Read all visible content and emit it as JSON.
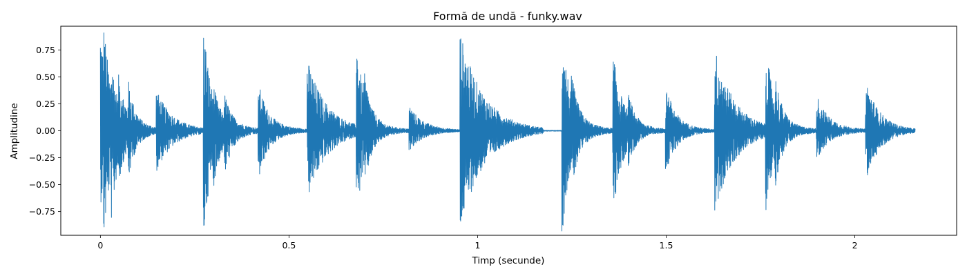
{
  "chart_data": {
    "type": "line",
    "title": "Formă de undă - funky.wav",
    "xlabel": "Timp (secunde)",
    "ylabel": "Amplitudine",
    "xlim": [
      -0.105,
      2.27
    ],
    "ylim": [
      -0.97,
      0.97
    ],
    "x_ticks": [
      0,
      0.5,
      1,
      1.5,
      2
    ],
    "x_tick_labels": [
      "0",
      "0.5",
      "1",
      "1.5",
      "2"
    ],
    "y_ticks": [
      0.75,
      0.5,
      0.25,
      0.0,
      -0.25,
      -0.5,
      -0.75
    ],
    "y_tick_labels": [
      "0.75",
      "0.50",
      "0.25",
      "0.00",
      "−0.25",
      "−0.50",
      "−0.75"
    ],
    "grid": false,
    "color": "#1f77b4",
    "duration_s": 2.16,
    "onsets": [
      {
        "t": 0.0,
        "peak": 0.85,
        "neg": 0.58,
        "decay": 0.025,
        "sustain": 0.12
      },
      {
        "t": 0.01,
        "peak": 0.88,
        "neg": 0.88,
        "decay": 0.02,
        "sustain": 0.1
      },
      {
        "t": 0.03,
        "peak": 0.6,
        "neg": 0.75,
        "decay": 0.018,
        "sustain": 0.08
      },
      {
        "t": 0.05,
        "peak": 0.45,
        "neg": 0.4,
        "decay": 0.02,
        "sustain": 0.07
      },
      {
        "t": 0.075,
        "peak": 0.4,
        "neg": 0.4,
        "decay": 0.018,
        "sustain": 0.06
      },
      {
        "t": 0.15,
        "peak": 0.32,
        "neg": 0.32,
        "decay": 0.04,
        "sustain": 0.05
      },
      {
        "t": 0.275,
        "peak": 0.87,
        "neg": 0.87,
        "decay": 0.02,
        "sustain": 0.1
      },
      {
        "t": 0.3,
        "peak": 0.35,
        "neg": 0.45,
        "decay": 0.02,
        "sustain": 0.08
      },
      {
        "t": 0.33,
        "peak": 0.28,
        "neg": 0.36,
        "decay": 0.02,
        "sustain": 0.06
      },
      {
        "t": 0.42,
        "peak": 0.38,
        "neg": 0.4,
        "decay": 0.025,
        "sustain": 0.06
      },
      {
        "t": 0.55,
        "peak": 0.6,
        "neg": 0.58,
        "decay": 0.05,
        "sustain": 0.05
      },
      {
        "t": 0.68,
        "peak": 0.75,
        "neg": 0.72,
        "decay": 0.02,
        "sustain": 0.08
      },
      {
        "t": 0.7,
        "peak": 0.48,
        "neg": 0.48,
        "decay": 0.02,
        "sustain": 0.06
      },
      {
        "t": 0.82,
        "peak": 0.2,
        "neg": 0.15,
        "decay": 0.035,
        "sustain": 0.03
      },
      {
        "t": 0.955,
        "peak": 0.82,
        "neg": 0.82,
        "decay": 0.06,
        "sustain": 0.08
      },
      {
        "t": 1.225,
        "peak": 0.85,
        "neg": 0.85,
        "decay": 0.02,
        "sustain": 0.1
      },
      {
        "t": 1.25,
        "peak": 0.45,
        "neg": 0.5,
        "decay": 0.02,
        "sustain": 0.07
      },
      {
        "t": 1.36,
        "peak": 0.65,
        "neg": 0.7,
        "decay": 0.025,
        "sustain": 0.06
      },
      {
        "t": 1.4,
        "peak": 0.3,
        "neg": 0.28,
        "decay": 0.02,
        "sustain": 0.05
      },
      {
        "t": 1.5,
        "peak": 0.38,
        "neg": 0.36,
        "decay": 0.025,
        "sustain": 0.05
      },
      {
        "t": 1.63,
        "peak": 0.7,
        "neg": 0.7,
        "decay": 0.05,
        "sustain": 0.06
      },
      {
        "t": 1.765,
        "peak": 0.75,
        "neg": 0.72,
        "decay": 0.02,
        "sustain": 0.08
      },
      {
        "t": 1.79,
        "peak": 0.45,
        "neg": 0.45,
        "decay": 0.02,
        "sustain": 0.06
      },
      {
        "t": 1.9,
        "peak": 0.28,
        "neg": 0.22,
        "decay": 0.03,
        "sustain": 0.05
      },
      {
        "t": 2.03,
        "peak": 0.43,
        "neg": 0.43,
        "decay": 0.035,
        "sustain": 0.04
      }
    ]
  }
}
